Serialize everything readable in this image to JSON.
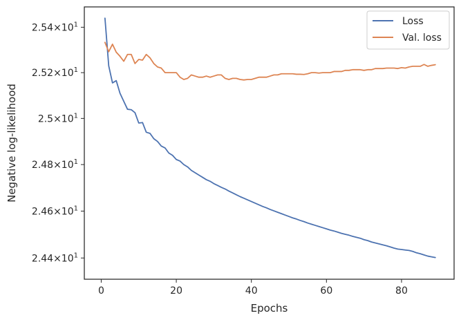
{
  "chart_data": {
    "type": "line",
    "xlabel": "Epochs",
    "ylabel": "Negative log-likelihood",
    "xlim": [
      -4.5,
      94
    ],
    "ylim": [
      24.31,
      25.49
    ],
    "yscale": "log",
    "grid": false,
    "legend_position": "top-right",
    "x_ticks": [
      {
        "value": 0,
        "label": "0"
      },
      {
        "value": 20,
        "label": "20"
      },
      {
        "value": 40,
        "label": "40"
      },
      {
        "value": 60,
        "label": "60"
      },
      {
        "value": 80,
        "label": "80"
      }
    ],
    "y_ticks": [
      {
        "value": 24.4,
        "mantissa": "2.44",
        "label": "2.44×10^1"
      },
      {
        "value": 24.6,
        "mantissa": "2.46",
        "label": "2.46×10^1"
      },
      {
        "value": 24.8,
        "mantissa": "2.48",
        "label": "2.48×10^1"
      },
      {
        "value": 25.0,
        "mantissa": "2.5",
        "label": "2.5×10^1"
      },
      {
        "value": 25.2,
        "mantissa": "2.52",
        "label": "2.52×10^1"
      },
      {
        "value": 25.4,
        "mantissa": "2.54",
        "label": "2.54×10^1"
      }
    ],
    "tick_multiplier": "×10",
    "tick_exponent": "1",
    "series": [
      {
        "name": "Loss",
        "color": "#4c72b0",
        "x": [
          1,
          2,
          3,
          4,
          5,
          6,
          7,
          8,
          9,
          10,
          11,
          12,
          13,
          14,
          15,
          16,
          17,
          18,
          19,
          20,
          21,
          22,
          23,
          24,
          25,
          26,
          27,
          28,
          29,
          30,
          31,
          32,
          33,
          34,
          35,
          36,
          37,
          38,
          39,
          40,
          41,
          42,
          43,
          44,
          45,
          46,
          47,
          48,
          49,
          50,
          51,
          52,
          53,
          54,
          55,
          56,
          57,
          58,
          59,
          60,
          61,
          62,
          63,
          64,
          65,
          66,
          67,
          68,
          69,
          70,
          71,
          72,
          73,
          74,
          75,
          76,
          77,
          78,
          79,
          80,
          81,
          82,
          83,
          84,
          85,
          86,
          87,
          88,
          89
        ],
        "values": [
          25.44,
          25.23,
          25.155,
          25.165,
          25.11,
          25.075,
          25.04,
          25.038,
          25.025,
          24.98,
          24.982,
          24.94,
          24.935,
          24.912,
          24.9,
          24.88,
          24.872,
          24.85,
          24.84,
          24.822,
          24.815,
          24.8,
          24.79,
          24.775,
          24.765,
          24.755,
          24.745,
          24.735,
          24.728,
          24.718,
          24.71,
          24.702,
          24.695,
          24.686,
          24.678,
          24.67,
          24.662,
          24.655,
          24.648,
          24.641,
          24.634,
          24.627,
          24.62,
          24.614,
          24.607,
          24.601,
          24.595,
          24.589,
          24.583,
          24.577,
          24.571,
          24.566,
          24.56,
          24.555,
          24.549,
          24.544,
          24.539,
          24.534,
          24.529,
          24.524,
          24.519,
          24.515,
          24.51,
          24.505,
          24.501,
          24.497,
          24.492,
          24.488,
          24.484,
          24.478,
          24.474,
          24.468,
          24.464,
          24.46,
          24.456,
          24.452,
          24.447,
          24.442,
          24.438,
          24.436,
          24.434,
          24.432,
          24.428,
          24.422,
          24.418,
          24.413,
          24.408,
          24.405,
          24.402
        ]
      },
      {
        "name": "Val. loss",
        "color": "#dd8452",
        "x": [
          1,
          2,
          3,
          4,
          5,
          6,
          7,
          8,
          9,
          10,
          11,
          12,
          13,
          14,
          15,
          16,
          17,
          18,
          19,
          20,
          21,
          22,
          23,
          24,
          25,
          26,
          27,
          28,
          29,
          30,
          31,
          32,
          33,
          34,
          35,
          36,
          37,
          38,
          39,
          40,
          41,
          42,
          43,
          44,
          45,
          46,
          47,
          48,
          49,
          50,
          51,
          52,
          53,
          54,
          55,
          56,
          57,
          58,
          59,
          60,
          61,
          62,
          63,
          64,
          65,
          66,
          67,
          68,
          69,
          70,
          71,
          72,
          73,
          74,
          75,
          76,
          77,
          78,
          79,
          80,
          81,
          82,
          83,
          84,
          85,
          86,
          87,
          88,
          89
        ],
        "values": [
          25.333,
          25.292,
          25.325,
          25.29,
          25.272,
          25.25,
          25.28,
          25.28,
          25.24,
          25.258,
          25.255,
          25.28,
          25.265,
          25.24,
          25.225,
          25.22,
          25.2,
          25.2,
          25.2,
          25.2,
          25.18,
          25.17,
          25.175,
          25.19,
          25.185,
          25.18,
          25.18,
          25.185,
          25.18,
          25.185,
          25.19,
          25.19,
          25.175,
          25.17,
          25.175,
          25.175,
          25.17,
          25.168,
          25.17,
          25.17,
          25.175,
          25.18,
          25.18,
          25.18,
          25.185,
          25.19,
          25.19,
          25.195,
          25.195,
          25.195,
          25.195,
          25.193,
          25.193,
          25.192,
          25.195,
          25.2,
          25.2,
          25.198,
          25.2,
          25.2,
          25.2,
          25.205,
          25.205,
          25.205,
          25.21,
          25.21,
          25.213,
          25.213,
          25.213,
          25.21,
          25.213,
          25.213,
          25.218,
          25.218,
          25.218,
          25.22,
          25.22,
          25.22,
          25.218,
          25.222,
          25.22,
          25.225,
          25.228,
          25.228,
          25.228,
          25.236,
          25.228,
          25.232,
          25.235
        ]
      }
    ]
  }
}
